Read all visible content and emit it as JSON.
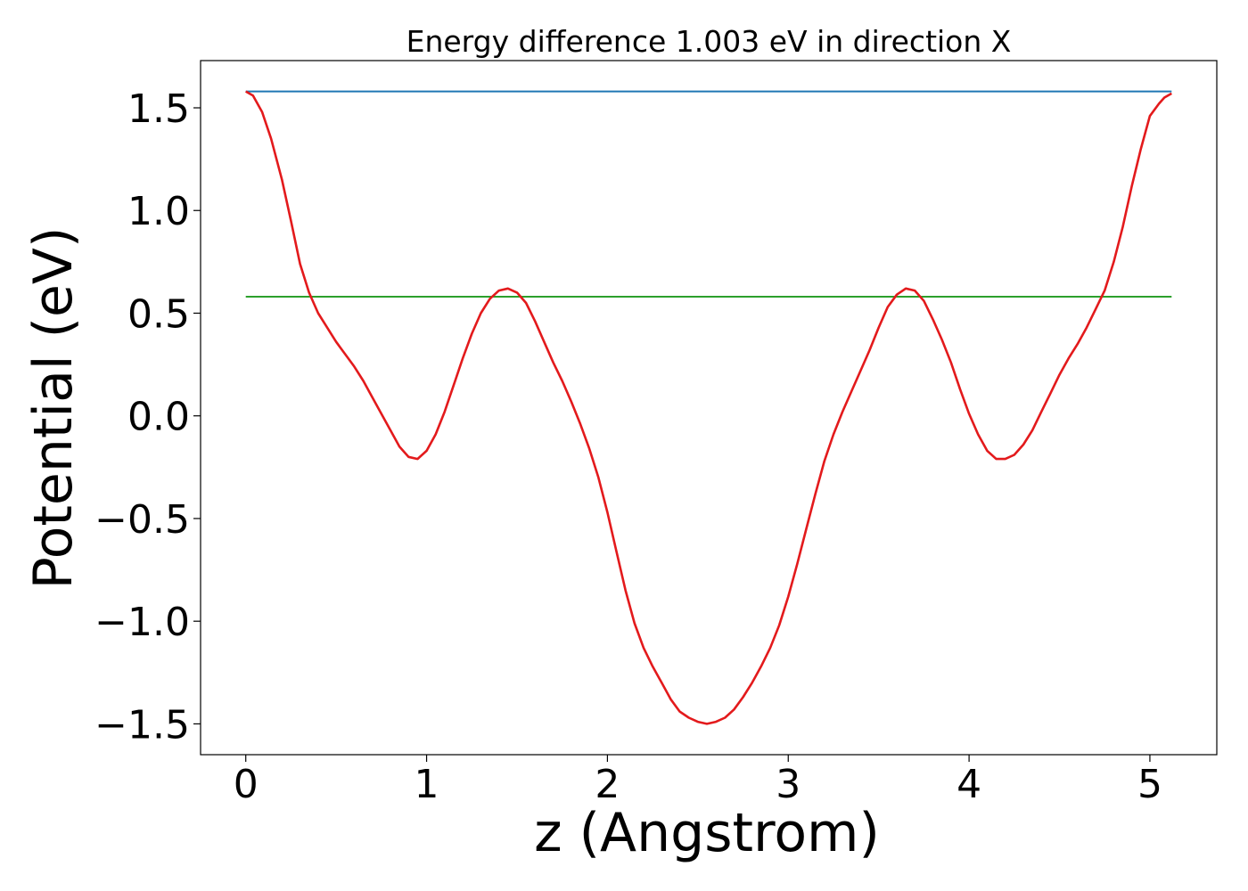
{
  "chart_data": {
    "type": "line",
    "title": "Energy difference 1.003 eV in direction X",
    "xlabel": "z (Angstrom)",
    "ylabel": "Potential (eV)",
    "xlim": [
      -0.25,
      5.37
    ],
    "ylim": [
      -1.65,
      1.73
    ],
    "xticks": [
      0,
      1,
      2,
      3,
      4,
      5
    ],
    "xtick_labels": [
      "0",
      "1",
      "2",
      "3",
      "4",
      "5"
    ],
    "yticks": [
      1.5,
      1.0,
      0.5,
      0.0,
      -0.5,
      -1.0,
      -1.5
    ],
    "ytick_labels": [
      "1.5",
      "1.0",
      "0.5",
      "0.0",
      "−0.5",
      "−1.0",
      "−1.5"
    ],
    "grid": false,
    "series": [
      {
        "color": "#1f77b4",
        "x": [
          0,
          5.12
        ],
        "y": [
          1.58,
          1.58
        ]
      },
      {
        "color": "#2ca02c",
        "x": [
          0,
          5.12
        ],
        "y": [
          0.58,
          0.58
        ]
      },
      {
        "color": "#e31a1c",
        "x": [
          0.0,
          0.04,
          0.09,
          0.14,
          0.2,
          0.25,
          0.3,
          0.35,
          0.4,
          0.45,
          0.5,
          0.55,
          0.6,
          0.65,
          0.7,
          0.75,
          0.8,
          0.85,
          0.9,
          0.95,
          1.0,
          1.05,
          1.1,
          1.15,
          1.2,
          1.25,
          1.3,
          1.35,
          1.4,
          1.45,
          1.5,
          1.55,
          1.6,
          1.65,
          1.7,
          1.75,
          1.8,
          1.85,
          1.9,
          1.95,
          2.0,
          2.05,
          2.1,
          2.15,
          2.2,
          2.25,
          2.3,
          2.35,
          2.4,
          2.45,
          2.5,
          2.55,
          2.6,
          2.65,
          2.7,
          2.75,
          2.8,
          2.85,
          2.9,
          2.95,
          3.0,
          3.05,
          3.1,
          3.15,
          3.2,
          3.25,
          3.3,
          3.35,
          3.4,
          3.45,
          3.5,
          3.55,
          3.6,
          3.65,
          3.7,
          3.75,
          3.8,
          3.85,
          3.9,
          3.95,
          4.0,
          4.05,
          4.1,
          4.15,
          4.2,
          4.25,
          4.3,
          4.35,
          4.4,
          4.45,
          4.5,
          4.55,
          4.6,
          4.65,
          4.7,
          4.75,
          4.8,
          4.85,
          4.9,
          4.95,
          5.0,
          5.05,
          5.08,
          5.12
        ],
        "y": [
          1.58,
          1.56,
          1.48,
          1.35,
          1.15,
          0.95,
          0.74,
          0.6,
          0.5,
          0.43,
          0.36,
          0.3,
          0.24,
          0.17,
          0.09,
          0.01,
          -0.07,
          -0.15,
          -0.2,
          -0.21,
          -0.17,
          -0.09,
          0.02,
          0.15,
          0.28,
          0.4,
          0.5,
          0.57,
          0.61,
          0.62,
          0.6,
          0.55,
          0.46,
          0.36,
          0.26,
          0.17,
          0.07,
          -0.04,
          -0.16,
          -0.3,
          -0.47,
          -0.66,
          -0.85,
          -1.01,
          -1.13,
          -1.22,
          -1.3,
          -1.38,
          -1.44,
          -1.47,
          -1.49,
          -1.5,
          -1.49,
          -1.47,
          -1.43,
          -1.37,
          -1.3,
          -1.22,
          -1.13,
          -1.02,
          -0.88,
          -0.72,
          -0.55,
          -0.38,
          -0.22,
          -0.09,
          0.02,
          0.12,
          0.22,
          0.32,
          0.43,
          0.53,
          0.59,
          0.62,
          0.61,
          0.56,
          0.47,
          0.37,
          0.26,
          0.13,
          0.01,
          -0.09,
          -0.17,
          -0.21,
          -0.21,
          -0.19,
          -0.14,
          -0.07,
          0.02,
          0.11,
          0.2,
          0.28,
          0.35,
          0.43,
          0.52,
          0.61,
          0.75,
          0.92,
          1.12,
          1.3,
          1.46,
          1.52,
          1.55,
          1.57
        ]
      }
    ]
  }
}
